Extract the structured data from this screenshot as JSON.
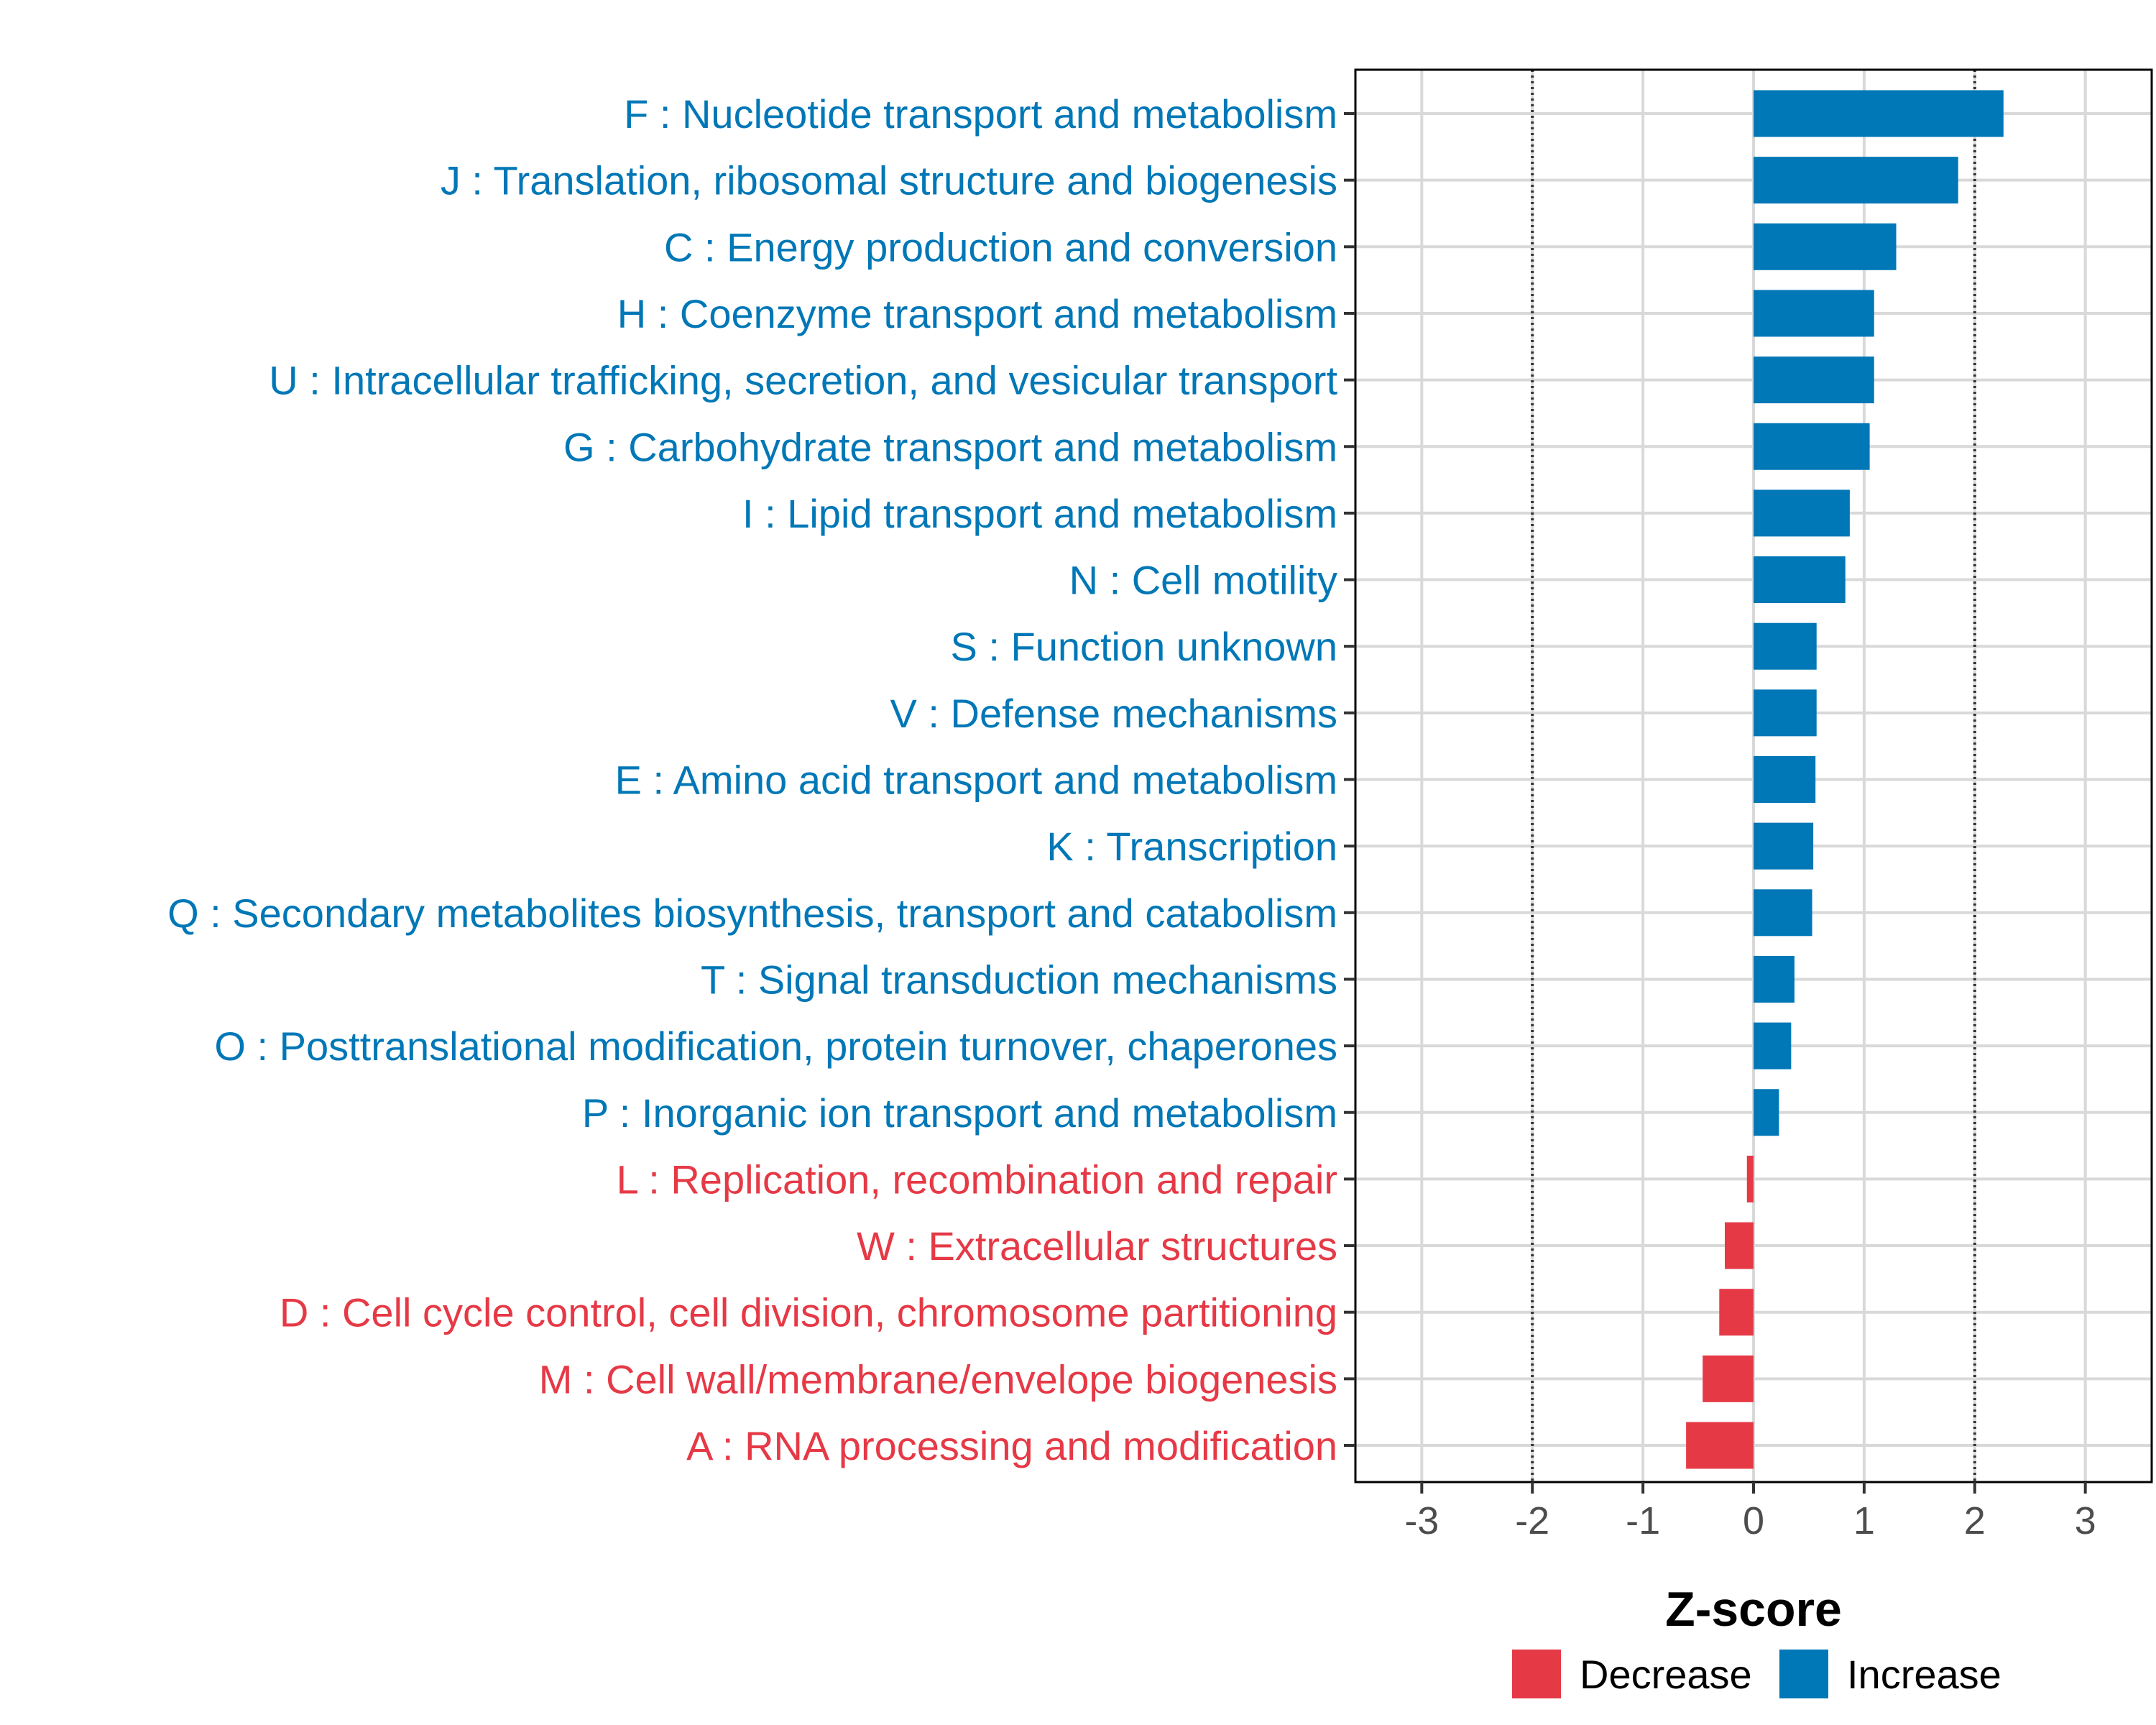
{
  "chart_data": {
    "type": "bar",
    "orientation": "horizontal",
    "xlabel": "Z-score",
    "xlim": [
      -3.6,
      3.6
    ],
    "xticks": [
      -3,
      -2,
      -1,
      0,
      1,
      2,
      3
    ],
    "xtick_labels": [
      "-3",
      "-2",
      "-1",
      "0",
      "1",
      "2",
      "3"
    ],
    "threshold_lines": [
      -2,
      2
    ],
    "grid": true,
    "categories": [
      "F : Nucleotide transport and metabolism",
      "J : Translation, ribosomal structure and biogenesis",
      "C : Energy production and conversion",
      "H : Coenzyme transport and metabolism",
      "U : Intracellular trafficking, secretion, and vesicular transport",
      "G : Carbohydrate transport and metabolism",
      "I : Lipid transport and metabolism",
      "N : Cell motility",
      "S : Function unknown",
      "V : Defense mechanisms",
      "E : Amino acid transport and metabolism",
      "K : Transcription",
      "Q : Secondary metabolites biosynthesis, transport and catabolism",
      "T : Signal transduction mechanisms",
      "O : Posttranslational modification, protein turnover, chaperones",
      "P : Inorganic ion transport and metabolism",
      "L : Replication, recombination and repair",
      "W : Extracellular structures",
      "D : Cell cycle control, cell division, chromosome partitioning",
      "M : Cell wall/membrane/envelope biogenesis",
      "A : RNA processing and modification"
    ],
    "values": [
      2.26,
      1.85,
      1.29,
      1.09,
      1.09,
      1.05,
      0.87,
      0.83,
      0.57,
      0.57,
      0.56,
      0.54,
      0.53,
      0.37,
      0.34,
      0.23,
      -0.06,
      -0.26,
      -0.31,
      -0.46,
      -0.61
    ],
    "groups": [
      "Increase",
      "Increase",
      "Increase",
      "Increase",
      "Increase",
      "Increase",
      "Increase",
      "Increase",
      "Increase",
      "Increase",
      "Increase",
      "Increase",
      "Increase",
      "Increase",
      "Increase",
      "Increase",
      "Decrease",
      "Decrease",
      "Decrease",
      "Decrease",
      "Decrease"
    ],
    "legend": {
      "position": "bottom",
      "entries": [
        {
          "label": "Decrease",
          "color": "#E63946"
        },
        {
          "label": "Increase",
          "color": "#0077B6"
        }
      ]
    },
    "colors": {
      "Increase": "#0077B6",
      "Decrease": "#E63946"
    }
  }
}
